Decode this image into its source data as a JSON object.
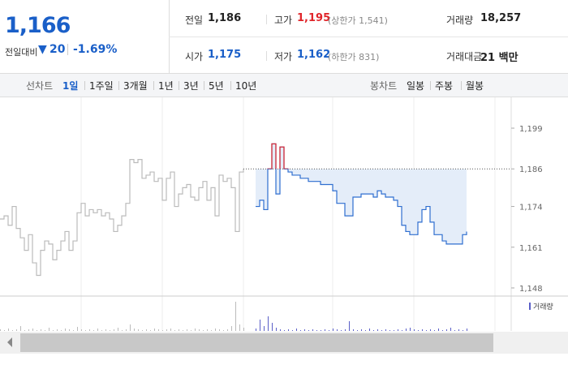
{
  "header": {
    "price": "1,166",
    "change_label": "전일대비",
    "change": "20",
    "change_pct": "-1.69%"
  },
  "stats": [
    {
      "label": "전일",
      "value": "1,186"
    },
    {
      "label": "고가",
      "value": "1,195",
      "note": "(상한가 1,541)"
    },
    {
      "label": "거래량",
      "value": "18,257"
    },
    {
      "label": "시가",
      "value": "1,175"
    },
    {
      "label": "저가",
      "value": "1,162",
      "note": "(하한가 831)"
    },
    {
      "label": "거래대금",
      "value": "21 백만"
    }
  ],
  "tabs": {
    "line_label": "선차트",
    "line_items": [
      "1일",
      "1주일",
      "3개월",
      "1년",
      "3년",
      "5년",
      "10년"
    ],
    "candle_label": "봉차트",
    "candle_items": [
      "일봉",
      "주봉",
      "월봉"
    ]
  },
  "chart_data": {
    "type": "line",
    "ylim": [
      1146,
      1209
    ],
    "yticks": [
      {
        "value": 1199,
        "label": "1,199"
      },
      {
        "value": 1186,
        "label": "1,186"
      },
      {
        "value": 1174,
        "label": "1,174"
      },
      {
        "value": 1161,
        "label": "1,161"
      },
      {
        "value": 1148,
        "label": "1,148"
      }
    ],
    "baseline": 1186,
    "series": [
      {
        "color": "#bbbbbb",
        "values": [
          1170,
          1171,
          1168,
          1174,
          1167,
          1164,
          1160,
          1165,
          1156,
          1152,
          1160,
          1163,
          1162,
          1157,
          1160,
          1163,
          1166,
          1160,
          1163,
          1172,
          1175,
          1171,
          1173,
          1172,
          1173,
          1171,
          1172,
          1170,
          1166,
          1168,
          1171,
          1175,
          1189,
          1188,
          1189,
          1183,
          1184,
          1185,
          1182,
          1183,
          1176,
          1183,
          1185,
          1174,
          1178,
          1180,
          1181,
          1177,
          1176,
          1180,
          1182,
          1176,
          1180,
          1171,
          1184,
          1182,
          1183,
          1180,
          1166,
          1185,
          1186,
          null,
          null,
          null,
          null,
          null,
          null,
          null,
          null,
          null,
          null,
          null,
          null,
          null,
          null,
          null,
          null,
          null,
          null,
          null,
          null,
          null,
          null,
          null,
          null,
          null,
          null,
          null,
          null,
          null,
          null,
          null,
          null,
          null,
          null,
          null,
          null,
          null,
          null,
          null,
          null,
          null,
          null,
          null,
          null,
          null,
          null,
          null,
          null,
          null,
          null,
          null,
          null,
          null,
          null,
          null
        ]
      },
      {
        "color": "#2f6fd0",
        "up_color": "#e0252a",
        "fill": "#e4edf9",
        "values": [
          null,
          null,
          null,
          null,
          null,
          null,
          null,
          null,
          null,
          null,
          null,
          null,
          null,
          null,
          null,
          null,
          null,
          null,
          null,
          null,
          null,
          null,
          null,
          null,
          null,
          null,
          null,
          null,
          null,
          null,
          null,
          null,
          null,
          null,
          null,
          null,
          null,
          null,
          null,
          null,
          null,
          null,
          null,
          null,
          null,
          null,
          null,
          null,
          null,
          null,
          null,
          null,
          null,
          null,
          null,
          null,
          null,
          null,
          null,
          null,
          null,
          null,
          null,
          1174,
          1176,
          1173,
          1186,
          1194,
          1178,
          1193,
          1186,
          1185,
          1184,
          1184,
          1183,
          1183,
          1182,
          1182,
          1182,
          1181,
          1181,
          1181,
          1179,
          1175,
          1175,
          1171,
          1171,
          1177,
          1177,
          1178,
          1178,
          1178,
          1177,
          1179,
          1178,
          1177,
          1177,
          1176,
          1174,
          1168,
          1166,
          1165,
          1165,
          1169,
          1173,
          1174,
          1169,
          1165,
          1165,
          1163,
          1162,
          1162,
          1162,
          1162,
          1165,
          1166
        ]
      }
    ],
    "volume": {
      "name": "거래량",
      "vlim": [
        0,
        40
      ],
      "color": "#bbbbbb",
      "today_color": "#5a5fc8",
      "values": [
        2,
        1,
        3,
        1,
        2,
        6,
        1,
        2,
        3,
        1,
        2,
        1,
        4,
        1,
        2,
        1,
        3,
        2,
        1,
        5,
        2,
        1,
        2,
        1,
        3,
        1,
        2,
        1,
        2,
        4,
        1,
        2,
        8,
        3,
        2,
        1,
        2,
        1,
        3,
        2,
        1,
        2,
        3,
        1,
        2,
        1,
        2,
        1,
        3,
        2,
        1,
        2,
        1,
        3,
        2,
        1,
        2,
        6,
        36,
        8,
        4,
        0,
        0,
        3,
        14,
        6,
        18,
        10,
        4,
        2,
        1,
        2,
        1,
        3,
        1,
        2,
        1,
        2,
        1,
        1,
        2,
        1,
        3,
        2,
        1,
        2,
        12,
        2,
        1,
        2,
        1,
        3,
        1,
        2,
        1,
        2,
        1,
        1,
        2,
        1,
        3,
        4,
        2,
        1,
        2,
        1,
        2,
        1,
        3,
        1,
        2,
        4,
        1,
        2,
        1,
        3
      ]
    }
  }
}
